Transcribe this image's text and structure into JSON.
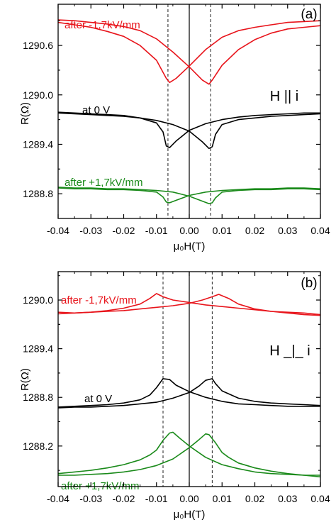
{
  "chart_data": [
    {
      "type": "line",
      "panel_label": "(a)",
      "field_label": "H || i",
      "xlabel": "μ₀H(T)",
      "ylabel": "R(Ω)",
      "xlim": [
        -0.04,
        0.04
      ],
      "ylim": [
        1288.5,
        1291.1
      ],
      "xticks": [
        -0.04,
        -0.03,
        -0.02,
        -0.01,
        0.0,
        0.01,
        0.02,
        0.03,
        0.04
      ],
      "yticks": [
        1288.8,
        1289.4,
        1290.0,
        1290.6
      ],
      "ytick_labels": [
        "1288.8",
        "1289.4",
        "1290.0",
        "1290.6"
      ],
      "xtick_labels": [
        "-0.04",
        "-0.03",
        "-0.02",
        "-0.01",
        "0.00",
        "0.01",
        "0.02",
        "0.03",
        "0.04"
      ],
      "dashed_lines_x": [
        -0.0065,
        0.0065
      ],
      "solid_line_x": 0.0,
      "series": [
        {
          "name": "after -1,7kV/mm",
          "color": "#e8141b",
          "branch_up": [
            [
              -0.04,
              1290.88
            ],
            [
              -0.035,
              1290.85
            ],
            [
              -0.03,
              1290.82
            ],
            [
              -0.025,
              1290.77
            ],
            [
              -0.02,
              1290.71
            ],
            [
              -0.015,
              1290.6
            ],
            [
              -0.01,
              1290.42
            ],
            [
              -0.007,
              1290.2
            ],
            [
              -0.006,
              1290.15
            ],
            [
              -0.004,
              1290.2
            ],
            [
              0.0,
              1290.35
            ],
            [
              0.005,
              1290.55
            ],
            [
              0.01,
              1290.7
            ],
            [
              0.015,
              1290.78
            ],
            [
              0.02,
              1290.82
            ],
            [
              0.025,
              1290.85
            ],
            [
              0.03,
              1290.88
            ],
            [
              0.035,
              1290.89
            ],
            [
              0.04,
              1290.9
            ]
          ],
          "branch_down": [
            [
              0.04,
              1290.84
            ],
            [
              0.035,
              1290.82
            ],
            [
              0.03,
              1290.8
            ],
            [
              0.025,
              1290.75
            ],
            [
              0.02,
              1290.67
            ],
            [
              0.015,
              1290.55
            ],
            [
              0.01,
              1290.36
            ],
            [
              0.007,
              1290.18
            ],
            [
              0.006,
              1290.13
            ],
            [
              0.004,
              1290.18
            ],
            [
              0.0,
              1290.34
            ],
            [
              -0.005,
              1290.52
            ],
            [
              -0.01,
              1290.68
            ],
            [
              -0.015,
              1290.78
            ],
            [
              -0.02,
              1290.83
            ],
            [
              -0.025,
              1290.86
            ],
            [
              -0.03,
              1290.88
            ],
            [
              -0.035,
              1290.9
            ],
            [
              -0.04,
              1290.91
            ]
          ]
        },
        {
          "name": "at 0 V",
          "color": "#000000",
          "branch_up": [
            [
              -0.04,
              1289.78
            ],
            [
              -0.035,
              1289.77
            ],
            [
              -0.03,
              1289.76
            ],
            [
              -0.025,
              1289.75
            ],
            [
              -0.02,
              1289.74
            ],
            [
              -0.015,
              1289.72
            ],
            [
              -0.01,
              1289.66
            ],
            [
              -0.008,
              1289.55
            ],
            [
              -0.007,
              1289.38
            ],
            [
              -0.006,
              1289.36
            ],
            [
              -0.004,
              1289.44
            ],
            [
              0.0,
              1289.57
            ],
            [
              0.005,
              1289.65
            ],
            [
              0.01,
              1289.7
            ],
            [
              0.015,
              1289.73
            ],
            [
              0.02,
              1289.75
            ],
            [
              0.025,
              1289.76
            ],
            [
              0.03,
              1289.77
            ],
            [
              0.035,
              1289.78
            ],
            [
              0.04,
              1289.78
            ]
          ],
          "branch_down": [
            [
              0.04,
              1289.77
            ],
            [
              0.035,
              1289.76
            ],
            [
              0.03,
              1289.75
            ],
            [
              0.025,
              1289.74
            ],
            [
              0.02,
              1289.72
            ],
            [
              0.015,
              1289.7
            ],
            [
              0.01,
              1289.64
            ],
            [
              0.008,
              1289.52
            ],
            [
              0.007,
              1289.37
            ],
            [
              0.006,
              1289.35
            ],
            [
              0.004,
              1289.43
            ],
            [
              0.0,
              1289.56
            ],
            [
              -0.005,
              1289.64
            ],
            [
              -0.01,
              1289.69
            ],
            [
              -0.015,
              1289.72
            ],
            [
              -0.02,
              1289.75
            ],
            [
              -0.025,
              1289.76
            ],
            [
              -0.03,
              1289.77
            ],
            [
              -0.035,
              1289.78
            ],
            [
              -0.04,
              1289.79
            ]
          ]
        },
        {
          "name": "after +1,7kV/mm",
          "color": "#1a8a1a",
          "branch_up": [
            [
              -0.04,
              1288.87
            ],
            [
              -0.035,
              1288.86
            ],
            [
              -0.03,
              1288.86
            ],
            [
              -0.025,
              1288.85
            ],
            [
              -0.02,
              1288.85
            ],
            [
              -0.015,
              1288.84
            ],
            [
              -0.01,
              1288.82
            ],
            [
              -0.008,
              1288.76
            ],
            [
              -0.007,
              1288.7
            ],
            [
              -0.006,
              1288.69
            ],
            [
              -0.004,
              1288.72
            ],
            [
              0.0,
              1288.78
            ],
            [
              0.005,
              1288.82
            ],
            [
              0.01,
              1288.84
            ],
            [
              0.015,
              1288.85
            ],
            [
              0.02,
              1288.86
            ],
            [
              0.025,
              1288.86
            ],
            [
              0.03,
              1288.87
            ],
            [
              0.035,
              1288.87
            ],
            [
              0.04,
              1288.86
            ]
          ],
          "branch_down": [
            [
              0.04,
              1288.85
            ],
            [
              0.035,
              1288.86
            ],
            [
              0.03,
              1288.86
            ],
            [
              0.025,
              1288.85
            ],
            [
              0.02,
              1288.85
            ],
            [
              0.015,
              1288.84
            ],
            [
              0.01,
              1288.82
            ],
            [
              0.008,
              1288.75
            ],
            [
              0.007,
              1288.69
            ],
            [
              0.006,
              1288.68
            ],
            [
              0.004,
              1288.71
            ],
            [
              0.0,
              1288.77
            ],
            [
              -0.005,
              1288.82
            ],
            [
              -0.01,
              1288.84
            ],
            [
              -0.015,
              1288.85
            ],
            [
              -0.02,
              1288.86
            ],
            [
              -0.025,
              1288.86
            ],
            [
              -0.03,
              1288.87
            ],
            [
              -0.035,
              1288.87
            ],
            [
              -0.04,
              1288.88
            ]
          ]
        }
      ]
    },
    {
      "type": "line",
      "panel_label": "(b)",
      "field_label": "H _|_ i",
      "xlabel": "μ₀H(T)",
      "ylabel": "R(Ω)",
      "xlim": [
        -0.04,
        0.04
      ],
      "ylim": [
        1287.7,
        1290.35
      ],
      "xticks": [
        -0.04,
        -0.03,
        -0.02,
        -0.01,
        0.0,
        0.01,
        0.02,
        0.03,
        0.04
      ],
      "yticks": [
        1288.2,
        1288.8,
        1289.4,
        1290.0
      ],
      "ytick_labels": [
        "1288.2",
        "1288.8",
        "1289.4",
        "1290.0"
      ],
      "xtick_labels": [
        "-0.04",
        "-0.03",
        "-0.02",
        "-0.01",
        "0.00",
        "0.01",
        "0.02",
        "0.03",
        "0.04"
      ],
      "dashed_lines_x": [
        -0.008,
        0.007
      ],
      "solid_line_x": 0.0,
      "series": [
        {
          "name": "after -1,7kV/mm",
          "color": "#e8141b",
          "branch_up": [
            [
              -0.04,
              1289.83
            ],
            [
              -0.035,
              1289.84
            ],
            [
              -0.03,
              1289.85
            ],
            [
              -0.025,
              1289.87
            ],
            [
              -0.02,
              1289.9
            ],
            [
              -0.015,
              1289.95
            ],
            [
              -0.012,
              1290.02
            ],
            [
              -0.01,
              1290.08
            ],
            [
              -0.008,
              1290.04
            ],
            [
              -0.005,
              1290.0
            ],
            [
              0.0,
              1289.97
            ],
            [
              0.005,
              1289.94
            ],
            [
              0.01,
              1289.92
            ],
            [
              0.015,
              1289.9
            ],
            [
              0.02,
              1289.88
            ],
            [
              0.025,
              1289.86
            ],
            [
              0.03,
              1289.85
            ],
            [
              0.035,
              1289.84
            ],
            [
              0.04,
              1289.82
            ]
          ],
          "branch_down": [
            [
              0.04,
              1289.81
            ],
            [
              0.035,
              1289.82
            ],
            [
              0.03,
              1289.84
            ],
            [
              0.025,
              1289.86
            ],
            [
              0.02,
              1289.89
            ],
            [
              0.015,
              1289.95
            ],
            [
              0.012,
              1290.02
            ],
            [
              0.009,
              1290.07
            ],
            [
              0.007,
              1290.04
            ],
            [
              0.004,
              1290.0
            ],
            [
              0.0,
              1289.96
            ],
            [
              -0.005,
              1289.93
            ],
            [
              -0.01,
              1289.91
            ],
            [
              -0.015,
              1289.89
            ],
            [
              -0.02,
              1289.87
            ],
            [
              -0.025,
              1289.86
            ],
            [
              -0.03,
              1289.85
            ],
            [
              -0.035,
              1289.84
            ],
            [
              -0.04,
              1289.85
            ]
          ]
        },
        {
          "name": "at 0 V",
          "color": "#000000",
          "branch_up": [
            [
              -0.04,
              1288.68
            ],
            [
              -0.035,
              1288.69
            ],
            [
              -0.03,
              1288.7
            ],
            [
              -0.025,
              1288.71
            ],
            [
              -0.02,
              1288.73
            ],
            [
              -0.015,
              1288.77
            ],
            [
              -0.012,
              1288.83
            ],
            [
              -0.01,
              1288.92
            ],
            [
              -0.008,
              1289.03
            ],
            [
              -0.006,
              1289.02
            ],
            [
              -0.004,
              1288.95
            ],
            [
              0.0,
              1288.87
            ],
            [
              0.005,
              1288.8
            ],
            [
              0.01,
              1288.75
            ],
            [
              0.015,
              1288.72
            ],
            [
              0.02,
              1288.71
            ],
            [
              0.025,
              1288.7
            ],
            [
              0.03,
              1288.69
            ],
            [
              0.035,
              1288.69
            ],
            [
              0.04,
              1288.69
            ]
          ],
          "branch_down": [
            [
              0.04,
              1288.7
            ],
            [
              0.035,
              1288.71
            ],
            [
              0.03,
              1288.72
            ],
            [
              0.025,
              1288.73
            ],
            [
              0.02,
              1288.75
            ],
            [
              0.015,
              1288.79
            ],
            [
              0.01,
              1288.88
            ],
            [
              0.008,
              1288.97
            ],
            [
              0.007,
              1289.03
            ],
            [
              0.005,
              1289.01
            ],
            [
              0.003,
              1288.94
            ],
            [
              0.0,
              1288.86
            ],
            [
              -0.005,
              1288.79
            ],
            [
              -0.01,
              1288.74
            ],
            [
              -0.015,
              1288.72
            ],
            [
              -0.02,
              1288.7
            ],
            [
              -0.025,
              1288.69
            ],
            [
              -0.03,
              1288.68
            ],
            [
              -0.035,
              1288.68
            ],
            [
              -0.04,
              1288.67
            ]
          ]
        },
        {
          "name": "after +1,7kV/mm",
          "color": "#1a8a1a",
          "branch_up": [
            [
              -0.04,
              1287.86
            ],
            [
              -0.035,
              1287.88
            ],
            [
              -0.03,
              1287.9
            ],
            [
              -0.025,
              1287.93
            ],
            [
              -0.02,
              1287.97
            ],
            [
              -0.015,
              1288.03
            ],
            [
              -0.012,
              1288.09
            ],
            [
              -0.01,
              1288.15
            ],
            [
              -0.008,
              1288.27
            ],
            [
              -0.006,
              1288.36
            ],
            [
              -0.005,
              1288.37
            ],
            [
              -0.003,
              1288.3
            ],
            [
              0.0,
              1288.2
            ],
            [
              0.005,
              1288.06
            ],
            [
              0.01,
              1287.97
            ],
            [
              0.015,
              1287.92
            ],
            [
              0.02,
              1287.88
            ],
            [
              0.025,
              1287.86
            ],
            [
              0.03,
              1287.85
            ],
            [
              0.035,
              1287.84
            ],
            [
              0.04,
              1287.84
            ]
          ],
          "branch_down": [
            [
              0.04,
              1287.82
            ],
            [
              0.035,
              1287.84
            ],
            [
              0.03,
              1287.86
            ],
            [
              0.025,
              1287.89
            ],
            [
              0.02,
              1287.93
            ],
            [
              0.015,
              1287.99
            ],
            [
              0.012,
              1288.06
            ],
            [
              0.01,
              1288.12
            ],
            [
              0.008,
              1288.24
            ],
            [
              0.006,
              1288.34
            ],
            [
              0.005,
              1288.35
            ],
            [
              0.003,
              1288.28
            ],
            [
              0.0,
              1288.18
            ],
            [
              -0.005,
              1288.04
            ],
            [
              -0.01,
              1287.96
            ],
            [
              -0.015,
              1287.91
            ],
            [
              -0.02,
              1287.88
            ],
            [
              -0.025,
              1287.86
            ],
            [
              -0.03,
              1287.85
            ],
            [
              -0.035,
              1287.84
            ],
            [
              -0.04,
              1287.84
            ]
          ]
        }
      ]
    }
  ]
}
